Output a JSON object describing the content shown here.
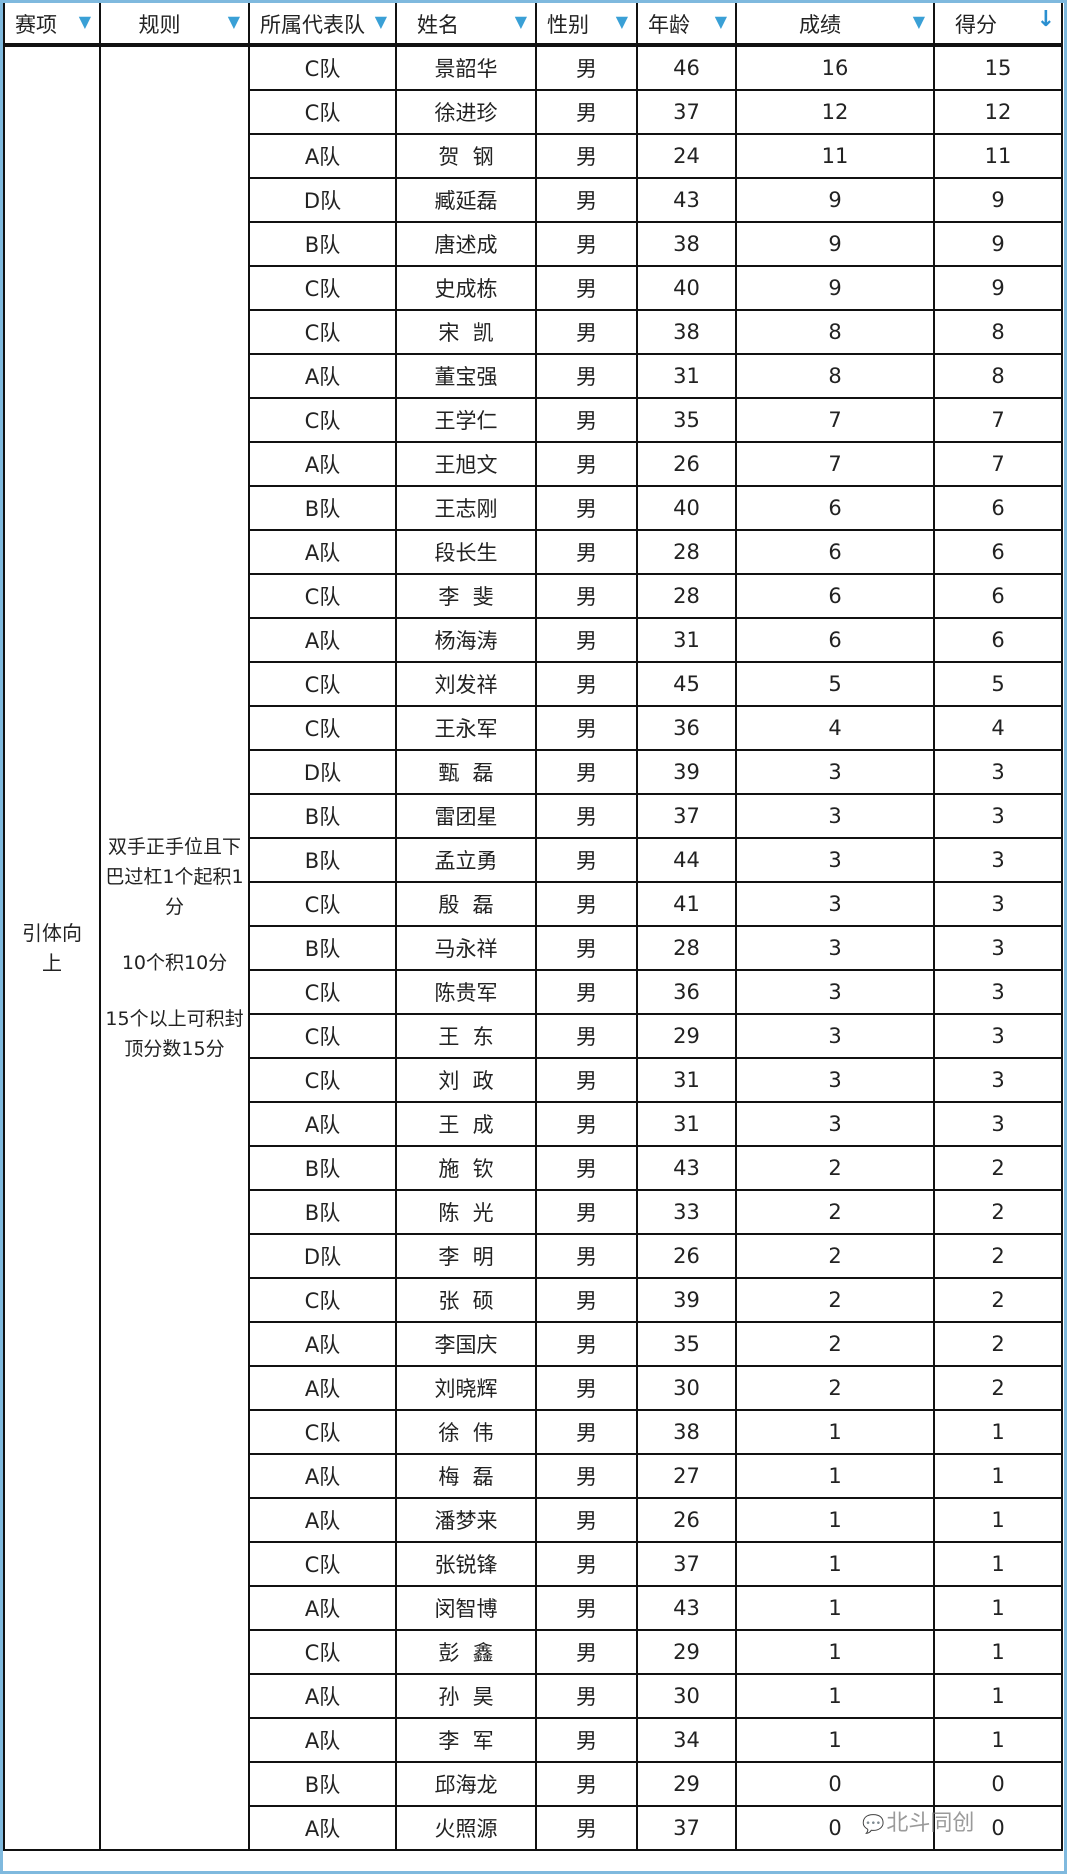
{
  "headers": {
    "event": "赛项",
    "rule": "规则",
    "team": "所属代表队",
    "name": "姓名",
    "gender": "性别",
    "age": "年龄",
    "result": "成绩",
    "score": "得分"
  },
  "icons": {
    "filter": "filter-icon",
    "sort": "sort-descending-arrow-icon"
  },
  "event": "引体向上",
  "rules": [
    "双手正手位且下巴过杠1个起积1分",
    "10个积10分",
    "15个以上可积封顶分数15分"
  ],
  "rows": [
    [
      "C队",
      "景韶华",
      "男",
      "46",
      "16",
      "15"
    ],
    [
      "C队",
      "徐进珍",
      "男",
      "37",
      "12",
      "12"
    ],
    [
      "A队",
      "贺  钢",
      "男",
      "24",
      "11",
      "11"
    ],
    [
      "D队",
      "臧延磊",
      "男",
      "43",
      "9",
      "9"
    ],
    [
      "B队",
      "唐述成",
      "男",
      "38",
      "9",
      "9"
    ],
    [
      "C队",
      "史成栋",
      "男",
      "40",
      "9",
      "9"
    ],
    [
      "C队",
      "宋  凯",
      "男",
      "38",
      "8",
      "8"
    ],
    [
      "A队",
      "董宝强",
      "男",
      "31",
      "8",
      "8"
    ],
    [
      "C队",
      "王学仁",
      "男",
      "35",
      "7",
      "7"
    ],
    [
      "A队",
      "王旭文",
      "男",
      "26",
      "7",
      "7"
    ],
    [
      "B队",
      "王志刚",
      "男",
      "40",
      "6",
      "6"
    ],
    [
      "A队",
      "段长生",
      "男",
      "28",
      "6",
      "6"
    ],
    [
      "C队",
      "李  斐",
      "男",
      "28",
      "6",
      "6"
    ],
    [
      "A队",
      "杨海涛",
      "男",
      "31",
      "6",
      "6"
    ],
    [
      "C队",
      "刘发祥",
      "男",
      "45",
      "5",
      "5"
    ],
    [
      "C队",
      "王永军",
      "男",
      "36",
      "4",
      "4"
    ],
    [
      "D队",
      "甄  磊",
      "男",
      "39",
      "3",
      "3"
    ],
    [
      "B队",
      "雷团星",
      "男",
      "37",
      "3",
      "3"
    ],
    [
      "B队",
      "孟立勇",
      "男",
      "44",
      "3",
      "3"
    ],
    [
      "C队",
      "殷  磊",
      "男",
      "41",
      "3",
      "3"
    ],
    [
      "B队",
      "马永祥",
      "男",
      "28",
      "3",
      "3"
    ],
    [
      "C队",
      "陈贵军",
      "男",
      "36",
      "3",
      "3"
    ],
    [
      "C队",
      "王  东",
      "男",
      "29",
      "3",
      "3"
    ],
    [
      "C队",
      "刘  政",
      "男",
      "31",
      "3",
      "3"
    ],
    [
      "A队",
      "王  成",
      "男",
      "31",
      "3",
      "3"
    ],
    [
      "B队",
      "施  钦",
      "男",
      "43",
      "2",
      "2"
    ],
    [
      "B队",
      "陈  光",
      "男",
      "33",
      "2",
      "2"
    ],
    [
      "D队",
      "李  明",
      "男",
      "26",
      "2",
      "2"
    ],
    [
      "C队",
      "张  硕",
      "男",
      "39",
      "2",
      "2"
    ],
    [
      "A队",
      "李国庆",
      "男",
      "35",
      "2",
      "2"
    ],
    [
      "A队",
      "刘晓辉",
      "男",
      "30",
      "2",
      "2"
    ],
    [
      "C队",
      "徐  伟",
      "男",
      "38",
      "1",
      "1"
    ],
    [
      "A队",
      "梅  磊",
      "男",
      "27",
      "1",
      "1"
    ],
    [
      "A队",
      "潘梦来",
      "男",
      "26",
      "1",
      "1"
    ],
    [
      "C队",
      "张锐锋",
      "男",
      "37",
      "1",
      "1"
    ],
    [
      "A队",
      "闵智博",
      "男",
      "43",
      "1",
      "1"
    ],
    [
      "C队",
      "彭  鑫",
      "男",
      "29",
      "1",
      "1"
    ],
    [
      "A队",
      "孙  昊",
      "男",
      "30",
      "1",
      "1"
    ],
    [
      "A队",
      "李  军",
      "男",
      "34",
      "1",
      "1"
    ],
    [
      "B队",
      "邱海龙",
      "男",
      "29",
      "0",
      "0"
    ],
    [
      "A队",
      "火照源",
      "男",
      "37",
      "0",
      "0"
    ]
  ],
  "watermark": "北斗同创",
  "colors": {
    "frame": "#7fb9de",
    "filter": "#3aa0d6"
  }
}
